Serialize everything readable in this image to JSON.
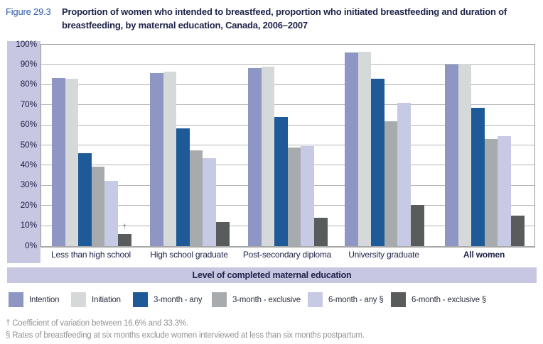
{
  "figure": {
    "label": "Figure 29.3",
    "title": "Proportion of women who intended to breastfeed, proportion who initiated breastfeeding and duration of breastfeeding, by maternal education, Canada, 2006–2007"
  },
  "chart_data": {
    "type": "bar",
    "title": "Proportion of women who intended to breastfeed, proportion who initiated breastfeeding and duration of breastfeeding, by maternal education, Canada, 2006–2007",
    "xlabel": "Level of completed maternal education",
    "ylabel": "",
    "ylim": [
      0,
      100
    ],
    "y_ticks": [
      "100%",
      "90%",
      "80%",
      "70%",
      "60%",
      "50%",
      "40%",
      "30%",
      "20%",
      "10%",
      "0%"
    ],
    "grid": true,
    "legend_position": "bottom",
    "categories": [
      {
        "label": "Less than high school",
        "bold": false
      },
      {
        "label": "High school graduate",
        "bold": false
      },
      {
        "label": "Post-secondary diploma",
        "bold": false
      },
      {
        "label": "University graduate",
        "bold": false
      },
      {
        "label": "All women",
        "bold": true
      }
    ],
    "series": [
      {
        "name": "Intention",
        "color": "#8e96c4",
        "values": [
          83.5,
          86,
          88.5,
          96,
          90
        ]
      },
      {
        "name": "Initiation",
        "color": "#d6d9da",
        "values": [
          83,
          86.5,
          89,
          96.5,
          90.5
        ]
      },
      {
        "name": "3-month - any",
        "color": "#1e5a97",
        "values": [
          46,
          58.5,
          64,
          83,
          68.5
        ]
      },
      {
        "name": "3-month - exclusive",
        "color": "#a8abad",
        "values": [
          39.5,
          47.5,
          49,
          62,
          53
        ]
      },
      {
        "name": "6-month - any §",
        "color": "#c7cae4",
        "values": [
          32.5,
          43.5,
          49.5,
          71,
          54.5
        ]
      },
      {
        "name": "6-month - exclusive §",
        "color": "#585c5d",
        "values": [
          6,
          12,
          14,
          20.5,
          15
        ]
      }
    ],
    "annotations": [
      {
        "text": "†",
        "category_index": 0,
        "series_index": 5
      }
    ]
  },
  "footnotes": [
    "† Coefficient of variation between 16.6% and 33.3%.",
    "§ Rates of breastfeeding at six months exclude women interviewed at less than six months postpartum."
  ],
  "colors": {
    "axis_band": "#c7c7e2",
    "figure_label": "#2e5da9",
    "title_text": "#1e2348",
    "gridline": "#b4b4b4",
    "plot_border": "#9a9a9a",
    "footnote_text": "#909294"
  }
}
